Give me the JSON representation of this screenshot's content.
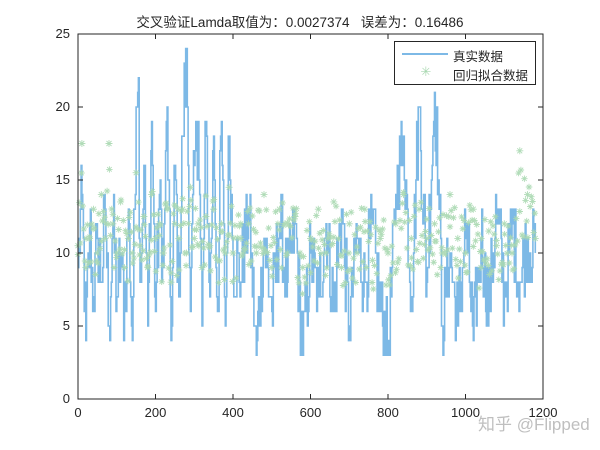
{
  "figure": {
    "title": "交叉验证Lamda取值为：0.0027374   误差为：0.16486",
    "watermark": "知乎 @Flipped"
  },
  "legend": {
    "items": [
      {
        "label": "真实数据",
        "style": "line",
        "color": "#7db9e6"
      },
      {
        "label": "回归拟合数据",
        "style": "asterisk",
        "color": "#a8d8b0"
      }
    ]
  },
  "axes": {
    "xticks": [
      "0",
      "200",
      "400",
      "600",
      "800",
      "1000",
      "1200"
    ],
    "yticks": [
      "0",
      "5",
      "10",
      "15",
      "20",
      "25"
    ]
  },
  "chart_data": {
    "type": "line",
    "title": "交叉验证Lamda取值为：0.0027374   误差为：0.16486",
    "xlabel": "",
    "ylabel": "",
    "xlim": [
      0,
      1200
    ],
    "ylim": [
      0,
      25
    ],
    "grid": false,
    "legend_position": "upper right",
    "annotations": {
      "lambda": 0.0027374,
      "error": 0.16486
    },
    "series": [
      {
        "name": "真实数据",
        "type": "line",
        "color": "#7db9e6",
        "x": [
          0,
          10,
          20,
          30,
          40,
          50,
          60,
          70,
          80,
          90,
          100,
          110,
          120,
          130,
          140,
          150,
          155,
          160,
          170,
          180,
          190,
          200,
          210,
          220,
          230,
          240,
          250,
          260,
          270,
          280,
          290,
          300,
          310,
          320,
          330,
          340,
          350,
          360,
          370,
          380,
          390,
          400,
          420,
          440,
          460,
          480,
          500,
          520,
          540,
          560,
          580,
          600,
          620,
          640,
          660,
          680,
          700,
          720,
          740,
          760,
          780,
          800,
          820,
          840,
          860,
          880,
          900,
          920,
          930,
          940,
          960,
          980,
          1000,
          1020,
          1040,
          1060,
          1080,
          1100,
          1120,
          1140,
          1160,
          1180
        ],
        "values": [
          9,
          14,
          4,
          12,
          7,
          11,
          8,
          13,
          5,
          12,
          7,
          10,
          6,
          13,
          4,
          20,
          24,
          8,
          16,
          5,
          19,
          6,
          14,
          9,
          20,
          4,
          16,
          7,
          18,
          24,
          6,
          16,
          19,
          5,
          19,
          7,
          18,
          6,
          19,
          5,
          18,
          10,
          8,
          13,
          3,
          11,
          6,
          12,
          8,
          12,
          3,
          10,
          7,
          12,
          6,
          13,
          5,
          11,
          8,
          12,
          6,
          3,
          14,
          18,
          7,
          20,
          8,
          21,
          15,
          5,
          10,
          5,
          12,
          4,
          11,
          6,
          13,
          7,
          12,
          8,
          11,
          10
        ]
      },
      {
        "name": "回归拟合数据",
        "type": "scatter",
        "marker": "*",
        "color": "#a8d8b0",
        "x": [
          0,
          10,
          20,
          30,
          40,
          50,
          60,
          70,
          80,
          90,
          100,
          110,
          120,
          130,
          140,
          150,
          160,
          170,
          180,
          190,
          200,
          210,
          220,
          230,
          240,
          250,
          260,
          270,
          280,
          290,
          300,
          310,
          320,
          330,
          340,
          350,
          360,
          370,
          380,
          390,
          400,
          420,
          440,
          460,
          480,
          500,
          520,
          540,
          560,
          580,
          600,
          620,
          640,
          660,
          680,
          700,
          720,
          740,
          760,
          780,
          800,
          820,
          840,
          860,
          880,
          900,
          920,
          940,
          960,
          980,
          1000,
          1020,
          1040,
          1060,
          1080,
          1100,
          1120,
          1140,
          1160,
          1180
        ],
        "values": [
          10.5,
          17.5,
          9,
          11,
          13,
          10,
          14,
          11,
          17.5,
          12,
          10,
          13.5,
          9,
          11,
          10,
          15.5,
          10.5,
          12.5,
          9,
          14,
          11,
          12,
          10,
          13,
          8,
          12,
          11,
          13,
          10,
          14.5,
          11,
          12,
          9,
          12.5,
          10.5,
          13,
          9.5,
          12,
          10,
          14.5,
          10,
          11,
          12,
          10,
          14,
          9,
          13,
          10,
          12.5,
          9,
          11,
          13,
          10,
          13.5,
          9,
          12,
          10,
          13,
          9.5,
          11,
          10,
          12,
          14,
          11,
          13,
          11,
          12,
          10,
          14,
          11,
          10,
          13,
          9,
          11.5,
          10.5,
          12,
          10,
          17,
          14,
          11
        ]
      }
    ]
  }
}
